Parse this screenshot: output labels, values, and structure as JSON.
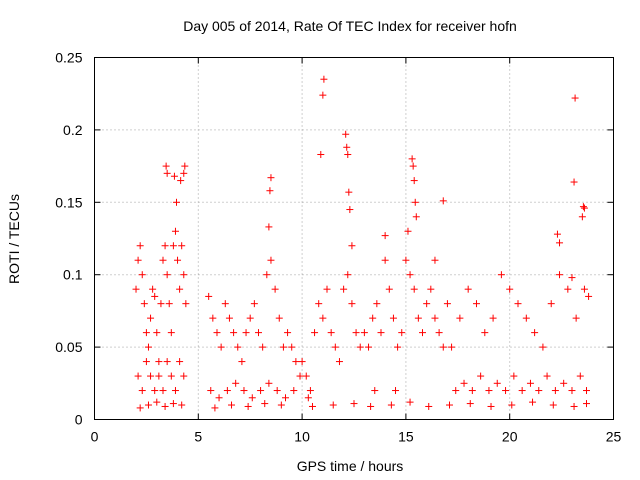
{
  "chart_data": {
    "type": "scatter",
    "title": "Day 005 of 2014, Rate Of TEC Index for receiver hofn",
    "xlabel": "GPS time / hours",
    "ylabel": "ROTI / TECUs",
    "xlim": [
      0,
      25
    ],
    "ylim": [
      0,
      0.25
    ],
    "grid": true,
    "xticks": [
      0,
      5,
      10,
      15,
      20,
      25
    ],
    "xtick_labels": [
      "0",
      "5",
      "10",
      "15",
      "20",
      "25"
    ],
    "yticks": [
      0,
      0.05,
      0.1,
      0.15,
      0.2,
      0.25
    ],
    "ytick_labels": [
      "0",
      "0.05",
      "0.1",
      "0.15",
      "0.2",
      "0.25"
    ],
    "marker": "plus",
    "color": "#ff0000",
    "series": [
      {
        "name": "ROTI",
        "x": [
          2.0,
          2.1,
          2.2,
          2.3,
          2.4,
          2.5,
          2.6,
          2.7,
          2.8,
          2.9,
          3.0,
          3.1,
          3.2,
          3.3,
          3.4,
          3.5,
          3.6,
          3.7,
          3.8,
          3.9,
          4.0,
          4.1,
          4.2,
          4.3,
          4.4,
          2.1,
          2.3,
          2.5,
          2.7,
          2.9,
          3.1,
          3.3,
          3.5,
          3.7,
          3.9,
          4.1,
          4.3,
          3.45,
          3.5,
          3.85,
          3.95,
          4.15,
          4.3,
          4.35,
          5.5,
          5.7,
          5.9,
          6.1,
          6.3,
          6.5,
          6.7,
          6.9,
          7.1,
          7.3,
          7.5,
          7.7,
          7.9,
          8.1,
          8.3,
          8.5,
          8.7,
          8.9,
          9.1,
          9.3,
          9.5,
          9.7,
          9.9,
          5.6,
          6.0,
          6.4,
          6.8,
          7.2,
          7.6,
          8.0,
          8.4,
          8.8,
          9.2,
          9.6,
          8.4,
          8.45,
          8.5,
          10.0,
          10.2,
          10.4,
          10.6,
          10.8,
          11.0,
          11.2,
          11.4,
          11.6,
          11.8,
          12.0,
          12.2,
          12.4,
          12.6,
          12.8,
          10.3,
          10.9,
          11.0,
          11.05,
          12.1,
          12.15,
          12.2,
          12.25,
          12.3,
          12.4,
          13.0,
          13.2,
          13.4,
          13.6,
          13.8,
          14.0,
          14.2,
          14.4,
          14.6,
          14.8,
          15.0,
          15.2,
          15.4,
          15.6,
          15.8,
          16.0,
          16.2,
          16.4,
          16.6,
          16.8,
          17.0,
          13.5,
          14.0,
          14.5,
          15.1,
          15.3,
          15.35,
          15.4,
          15.45,
          15.5,
          16.4,
          16.8,
          17.2,
          17.6,
          18.0,
          18.4,
          18.8,
          19.2,
          19.6,
          20.0,
          20.4,
          20.8,
          21.2,
          21.6,
          22.0,
          22.4,
          22.8,
          23.2,
          23.6,
          23.8,
          17.4,
          17.8,
          18.2,
          18.6,
          19.0,
          19.4,
          19.8,
          20.2,
          20.6,
          21.0,
          21.4,
          21.8,
          22.2,
          22.6,
          23.0,
          23.4,
          23.7,
          22.3,
          22.4,
          23.0,
          23.1,
          23.15,
          23.5,
          23.55,
          23.6,
          2.2,
          2.6,
          3.0,
          3.4,
          3.8,
          4.2,
          5.8,
          6.6,
          7.4,
          8.2,
          9.0,
          10.5,
          11.5,
          12.5,
          13.3,
          14.3,
          15.2,
          16.1,
          17.1,
          18.1,
          19.1,
          20.1,
          21.1,
          22.1,
          23.1,
          23.7
        ],
        "y": [
          0.09,
          0.11,
          0.12,
          0.1,
          0.08,
          0.06,
          0.05,
          0.07,
          0.09,
          0.085,
          0.06,
          0.04,
          0.08,
          0.11,
          0.12,
          0.1,
          0.08,
          0.06,
          0.12,
          0.13,
          0.11,
          0.09,
          0.12,
          0.1,
          0.08,
          0.03,
          0.02,
          0.04,
          0.03,
          0.02,
          0.03,
          0.02,
          0.04,
          0.03,
          0.02,
          0.04,
          0.03,
          0.175,
          0.17,
          0.168,
          0.15,
          0.165,
          0.17,
          0.175,
          0.085,
          0.07,
          0.06,
          0.05,
          0.08,
          0.07,
          0.06,
          0.05,
          0.04,
          0.06,
          0.07,
          0.08,
          0.06,
          0.05,
          0.1,
          0.11,
          0.09,
          0.07,
          0.05,
          0.06,
          0.05,
          0.04,
          0.03,
          0.02,
          0.015,
          0.02,
          0.025,
          0.02,
          0.015,
          0.02,
          0.025,
          0.02,
          0.015,
          0.02,
          0.133,
          0.158,
          0.167,
          0.04,
          0.03,
          0.02,
          0.06,
          0.08,
          0.07,
          0.09,
          0.06,
          0.05,
          0.04,
          0.09,
          0.1,
          0.08,
          0.06,
          0.05,
          0.015,
          0.183,
          0.224,
          0.235,
          0.197,
          0.188,
          0.183,
          0.157,
          0.145,
          0.12,
          0.06,
          0.05,
          0.07,
          0.08,
          0.06,
          0.11,
          0.09,
          0.07,
          0.05,
          0.06,
          0.11,
          0.1,
          0.09,
          0.07,
          0.06,
          0.08,
          0.09,
          0.07,
          0.06,
          0.05,
          0.08,
          0.02,
          0.127,
          0.02,
          0.13,
          0.18,
          0.175,
          0.165,
          0.15,
          0.14,
          0.11,
          0.151,
          0.05,
          0.07,
          0.09,
          0.08,
          0.06,
          0.07,
          0.1,
          0.09,
          0.08,
          0.07,
          0.06,
          0.05,
          0.08,
          0.1,
          0.09,
          0.07,
          0.09,
          0.085,
          0.02,
          0.025,
          0.02,
          0.03,
          0.02,
          0.025,
          0.02,
          0.03,
          0.02,
          0.025,
          0.02,
          0.03,
          0.02,
          0.025,
          0.02,
          0.03,
          0.02,
          0.128,
          0.122,
          0.098,
          0.164,
          0.222,
          0.14,
          0.147,
          0.146,
          0.008,
          0.01,
          0.012,
          0.009,
          0.011,
          0.01,
          0.008,
          0.01,
          0.009,
          0.011,
          0.01,
          0.009,
          0.01,
          0.011,
          0.009,
          0.01,
          0.012,
          0.009,
          0.01,
          0.011,
          0.009,
          0.01,
          0.012,
          0.01,
          0.009,
          0.011
        ]
      }
    ]
  }
}
